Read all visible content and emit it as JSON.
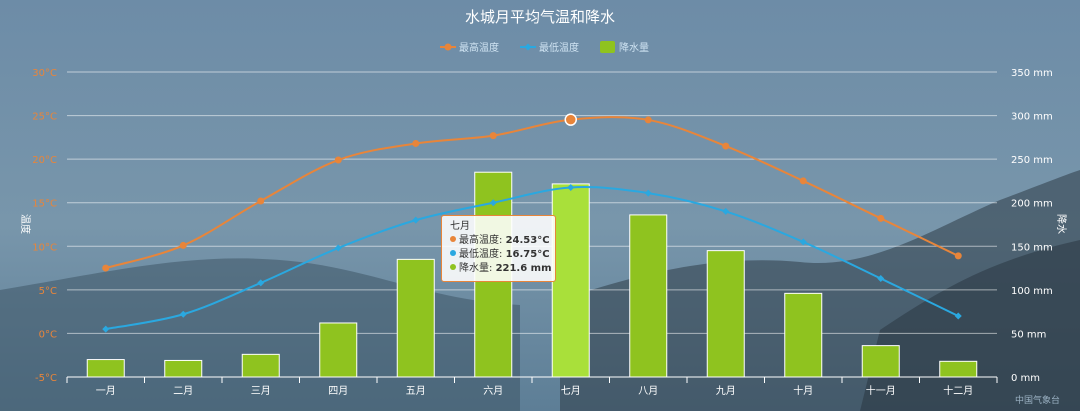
{
  "chart_data": {
    "type": "bar+line",
    "title": "水城月平均气温和降水",
    "categories": [
      "一月",
      "二月",
      "三月",
      "四月",
      "五月",
      "六月",
      "七月",
      "八月",
      "九月",
      "十月",
      "十一月",
      "十二月"
    ],
    "series": [
      {
        "name": "最高温度",
        "type": "line",
        "axis": "left",
        "color": "#e8853a",
        "values": [
          7.5,
          10.1,
          15.2,
          19.9,
          21.8,
          22.7,
          24.53,
          24.5,
          21.5,
          17.5,
          13.2,
          8.9
        ]
      },
      {
        "name": "最低温度",
        "type": "line",
        "axis": "left",
        "color": "#2aa8e0",
        "values": [
          0.5,
          2.2,
          5.8,
          9.8,
          13.0,
          15.0,
          16.75,
          16.1,
          14.0,
          10.5,
          6.3,
          2.0
        ]
      },
      {
        "name": "降水量",
        "type": "bar",
        "axis": "right",
        "color": "#8fc31f",
        "values": [
          20,
          19,
          26,
          62,
          135,
          235,
          221.6,
          186,
          145,
          96,
          36,
          18
        ]
      }
    ],
    "y_left": {
      "label": "温度",
      "ylim": [
        -5,
        30
      ],
      "ticks": [
        "-5°C",
        "0°C",
        "5°C",
        "10°C",
        "15°C",
        "20°C",
        "25°C",
        "30°C"
      ]
    },
    "y_right": {
      "label": "降水",
      "ylim": [
        0,
        350
      ],
      "ticks": [
        "0 mm",
        "50 mm",
        "100 mm",
        "150 mm",
        "200 mm",
        "250 mm",
        "300 mm",
        "350 mm"
      ]
    },
    "legend": "top-center",
    "grid": true
  },
  "tooltip": {
    "title": "七月",
    "rows": [
      {
        "label": "最高温度:",
        "value": "24.53°C",
        "color": "#e8853a"
      },
      {
        "label": "最低温度:",
        "value": "16.75°C",
        "color": "#2aa8e0"
      },
      {
        "label": "降水量:",
        "value": "221.6 mm",
        "color": "#8fc31f"
      }
    ]
  },
  "watermark": "中国气象台"
}
